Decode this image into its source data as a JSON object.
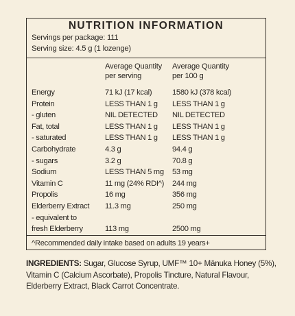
{
  "panel": {
    "title": "NUTRITION INFORMATION",
    "servings_per_package": "Servings per package: 111",
    "serving_size": "Serving size: 4.5 g (1 lozenge)",
    "col1_header_line1": "Average Quantity",
    "col1_header_line2": "per serving",
    "col2_header_line1": "Average Quantity",
    "col2_header_line2": "per 100 g",
    "rows": [
      {
        "label": "Energy",
        "per_serving": "71 kJ (17 kcal)",
        "per_100g": "1580 kJ (378 kcal)"
      },
      {
        "label": "Protein",
        "per_serving": "LESS THAN 1 g",
        "per_100g": "LESS THAN 1 g"
      },
      {
        "label": " - gluten",
        "per_serving": "NIL DETECTED",
        "per_100g": "NIL DETECTED"
      },
      {
        "label": "Fat, total",
        "per_serving": "LESS THAN 1 g",
        "per_100g": "LESS THAN 1 g"
      },
      {
        "label": " - saturated",
        "per_serving": "LESS THAN 1 g",
        "per_100g": "LESS THAN 1 g"
      },
      {
        "label": "Carbohydrate",
        "per_serving": "4.3 g",
        "per_100g": "94.4 g"
      },
      {
        "label": " - sugars",
        "per_serving": "3.2 g",
        "per_100g": "70.8 g"
      },
      {
        "label": "Sodium",
        "per_serving": "LESS THAN 5 mg",
        "per_100g": "53 mg"
      },
      {
        "label": "Vitamin C",
        "per_serving": "11 mg (24% RDI^)",
        "per_100g": "244 mg"
      },
      {
        "label": "Propolis",
        "per_serving": "16 mg",
        "per_100g": "356 mg"
      },
      {
        "label": "Elderberry Extract",
        "per_serving": "11.3 mg",
        "per_100g": "250 mg"
      },
      {
        "label": " - equivalent to",
        "per_serving": "",
        "per_100g": ""
      },
      {
        "label": "fresh Elderberry",
        "per_serving": "113 mg",
        "per_100g": "2500 mg"
      }
    ],
    "footnote": "^Recommended daily intake based on adults 19 years+"
  },
  "ingredients": {
    "heading": "INGREDIENTS:",
    "text": " Sugar, Glucose Syrup, UMF™ 10+ Mānuka Honey (5%), Vitamin C (Calcium Ascorbate), Propolis Tincture, Natural Flavour, Elderberry Extract, Black Carrot Concentrate."
  }
}
